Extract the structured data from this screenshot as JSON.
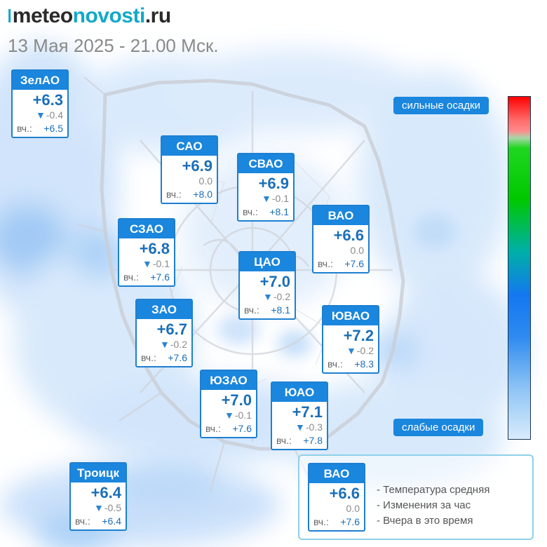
{
  "logo": {
    "mark": "ǀ",
    "part1": "meteo",
    "part2": "novosti",
    "part3": ".ru"
  },
  "subtitle": "13 Мая 2025 - 21.00 Мск.",
  "districts": [
    {
      "name": "ЗелАО",
      "temp": "+6.3",
      "change": "-0.4",
      "yesterday_label": "вч.:",
      "yesterday": "+6.5",
      "trend": "down"
    },
    {
      "name": "САО",
      "temp": "+6.9",
      "change": "0.0",
      "yesterday_label": "вч.:",
      "yesterday": "+8.0",
      "trend": "none"
    },
    {
      "name": "СВАО",
      "temp": "+6.9",
      "change": "-0.1",
      "yesterday_label": "вч.:",
      "yesterday": "+8.1",
      "trend": "down"
    },
    {
      "name": "ВАО",
      "temp": "+6.6",
      "change": "0.0",
      "yesterday_label": "вч.:",
      "yesterday": "+7.6",
      "trend": "none"
    },
    {
      "name": "СЗАО",
      "temp": "+6.8",
      "change": "-0.1",
      "yesterday_label": "вч.:",
      "yesterday": "+7.6",
      "trend": "down"
    },
    {
      "name": "ЦАО",
      "temp": "+7.0",
      "change": "-0.2",
      "yesterday_label": "вч.:",
      "yesterday": "+8.1",
      "trend": "down"
    },
    {
      "name": "ЗАО",
      "temp": "+6.7",
      "change": "-0.2",
      "yesterday_label": "вч.:",
      "yesterday": "+7.6",
      "trend": "down"
    },
    {
      "name": "ЮВАО",
      "temp": "+7.2",
      "change": "-0.2",
      "yesterday_label": "вч.:",
      "yesterday": "+8.3",
      "trend": "down"
    },
    {
      "name": "ЮЗАО",
      "temp": "+7.0",
      "change": "-0.1",
      "yesterday_label": "вч.:",
      "yesterday": "+7.6",
      "trend": "down"
    },
    {
      "name": "ЮАО",
      "temp": "+7.1",
      "change": "-0.3",
      "yesterday_label": "вч.:",
      "yesterday": "+7.8",
      "trend": "down"
    },
    {
      "name": "Троицк",
      "temp": "+6.4",
      "change": "-0.5",
      "yesterday_label": "вч.:",
      "yesterday": "+6.4",
      "trend": "down"
    }
  ],
  "scale": {
    "top_label": "сильные осадки",
    "bottom_label": "слабые осадки",
    "colors": [
      "#ff0000",
      "#ff8a8a",
      "#1fd61f",
      "#00c800",
      "#1478f0",
      "#8cc3f5",
      "#d9ecfc"
    ]
  },
  "legend": {
    "sample": {
      "name": "ВАО",
      "temp": "+6.6",
      "change": "0.0",
      "yesterday_label": "вч.:",
      "yesterday": "+7.6",
      "trend": "none"
    },
    "items": [
      "- Температура средняя",
      "- Изменения за час",
      "- Вчера в это время"
    ]
  },
  "colors": {
    "accent": "#1a86dd",
    "brand": "#13a8c8",
    "temp_text": "#1a6fb8"
  }
}
